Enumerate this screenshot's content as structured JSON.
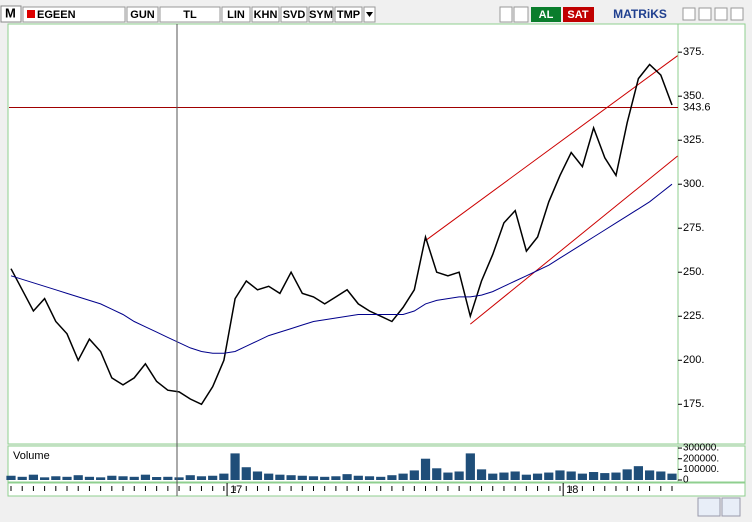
{
  "toolbar": {
    "symbol": "EGEEN",
    "buttons": [
      "GUN",
      "TL",
      "LIN",
      "KHN",
      "SVD",
      "SYM",
      "TMP"
    ],
    "buy": "AL",
    "sell": "SAT",
    "brand": "MATRiKS"
  },
  "chart_data": [
    {
      "type": "line",
      "categories": [
        null,
        null,
        null,
        null,
        null,
        null,
        null,
        null,
        null,
        null,
        null,
        null,
        null,
        null,
        null,
        null,
        null,
        null,
        null,
        null,
        "17",
        null,
        null,
        null,
        null,
        null,
        null,
        null,
        null,
        null,
        null,
        null,
        null,
        null,
        null,
        null,
        null,
        null,
        null,
        null,
        null,
        null,
        null,
        null,
        null,
        null,
        null,
        null,
        null,
        null,
        "18",
        null,
        null,
        null,
        null,
        null,
        null,
        null,
        null,
        null
      ],
      "series": [
        {
          "color": "#000000",
          "values": [
            252,
            240,
            228,
            235,
            222,
            215,
            200,
            212,
            205,
            190,
            186,
            190,
            198,
            188,
            183,
            182,
            178,
            175,
            185,
            200,
            235,
            245,
            240,
            242,
            238,
            250,
            238,
            236,
            232,
            236,
            240,
            232,
            228,
            225,
            222,
            230,
            240,
            270,
            250,
            248,
            250,
            225,
            245,
            260,
            278,
            285,
            262,
            270,
            290,
            305,
            318,
            310,
            332,
            315,
            305,
            335,
            360,
            368,
            362,
            345
          ]
        },
        {
          "color": "#00008b",
          "values": [
            248,
            246,
            244,
            242,
            240,
            238,
            236,
            234,
            232,
            229,
            226,
            222,
            219,
            216,
            213,
            210,
            207,
            205,
            204,
            204,
            205,
            208,
            211,
            214,
            216,
            218,
            220,
            222,
            223,
            224,
            225,
            226,
            226,
            226,
            226,
            226,
            228,
            232,
            234,
            235,
            236,
            236,
            237,
            239,
            242,
            245,
            248,
            251,
            254,
            258,
            262,
            266,
            270,
            274,
            278,
            282,
            286,
            290,
            295,
            300
          ]
        }
      ],
      "channel": [
        {
          "color": "#cc0000",
          "x": [
            37,
            59.5
          ],
          "values": [
            268,
            373
          ]
        },
        {
          "color": "#cc0000",
          "x": [
            41,
            59.5
          ],
          "values": [
            220.5,
            316
          ]
        }
      ],
      "hline": {
        "value": 343.6,
        "color": "#a00000"
      },
      "ylim": [
        153,
        391
      ],
      "yticks": [
        {
          "value": 175,
          "label": "175."
        },
        {
          "value": 200,
          "label": "200."
        },
        {
          "value": 225,
          "label": "225."
        },
        {
          "value": 250,
          "label": "250."
        },
        {
          "value": 275,
          "label": "275."
        },
        {
          "value": 300,
          "label": "300."
        },
        {
          "value": 325,
          "label": "325."
        },
        {
          "value": 350,
          "label": "350."
        },
        {
          "value": 375,
          "label": "375."
        }
      ]
    },
    {
      "type": "bar",
      "title": "Volume",
      "color": "#1f4e79",
      "values": [
        40000,
        30000,
        50000,
        25000,
        35000,
        30000,
        45000,
        30000,
        25000,
        40000,
        35000,
        30000,
        50000,
        28000,
        30000,
        25000,
        45000,
        35000,
        40000,
        60000,
        250000,
        120000,
        80000,
        60000,
        50000,
        45000,
        40000,
        35000,
        30000,
        35000,
        55000,
        40000,
        35000,
        30000,
        45000,
        60000,
        90000,
        200000,
        110000,
        70000,
        80000,
        250000,
        100000,
        60000,
        70000,
        80000,
        50000,
        60000,
        70000,
        90000,
        80000,
        60000,
        75000,
        65000,
        70000,
        100000,
        130000,
        90000,
        80000,
        60000
      ],
      "ylim": [
        0,
        310000
      ],
      "yticks": [
        0,
        {
          "value": 100000,
          "label": "100000."
        },
        {
          "value": 200000,
          "label": "200000."
        },
        {
          "value": 300000,
          "label": "300000."
        }
      ]
    }
  ]
}
